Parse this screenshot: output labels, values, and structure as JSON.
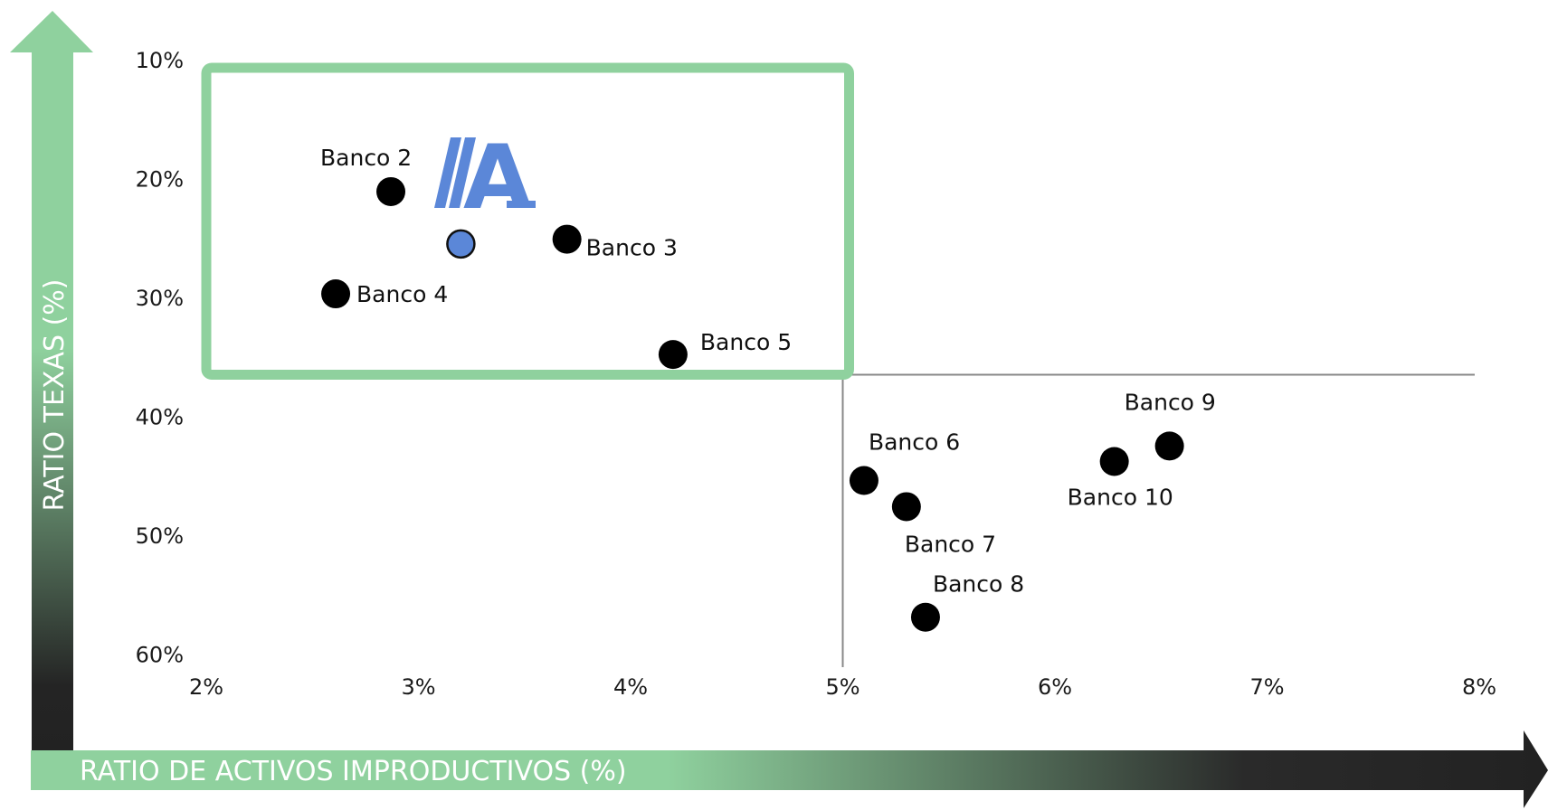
{
  "colors": {
    "accent_green": "#8fd19e",
    "dark": "#222222",
    "point": "#000000",
    "highlight_point": "#5b87d8",
    "logo_blue": "#5b87d8",
    "divider": "#888888"
  },
  "logo": {
    "text": "A",
    "icon": "brand-logo-icon"
  },
  "chart_data": {
    "type": "scatter",
    "title": "",
    "xlabel": "RATIO DE ACTIVOS IMPRODUCTIVOS (%)",
    "ylabel": "RATIO TEXAS (%)",
    "xlim": [
      2,
      8
    ],
    "ylim": [
      10,
      60
    ],
    "y_inverted": true,
    "grid": false,
    "x_ticks": [
      {
        "value": 2,
        "label": "2%"
      },
      {
        "value": 3,
        "label": "3%"
      },
      {
        "value": 4,
        "label": "4%"
      },
      {
        "value": 5,
        "label": "5%"
      },
      {
        "value": 6,
        "label": "6%"
      },
      {
        "value": 7,
        "label": "7%"
      },
      {
        "value": 8,
        "label": "8%"
      }
    ],
    "y_ticks": [
      {
        "value": 10,
        "label": "10%"
      },
      {
        "value": 20,
        "label": "20%"
      },
      {
        "value": 30,
        "label": "30%"
      },
      {
        "value": 40,
        "label": "40%"
      },
      {
        "value": 50,
        "label": "50%"
      },
      {
        "value": 60,
        "label": "60%"
      }
    ],
    "thresholds": {
      "x": 5.0,
      "y": 36.5
    },
    "highlight_box": {
      "x_range": [
        2,
        5
      ],
      "y_range": [
        10,
        36.5
      ],
      "color": "#8fd19e"
    },
    "points": [
      {
        "name": "",
        "x": 3.2,
        "y": 25.5,
        "highlight": true,
        "label_pos": "none"
      },
      {
        "name": "Banco 2",
        "x": 2.87,
        "y": 21.1,
        "label_pos": "above"
      },
      {
        "name": "Banco 3",
        "x": 3.7,
        "y": 25.1,
        "label_pos": "right-below"
      },
      {
        "name": "Banco 4",
        "x": 2.61,
        "y": 29.7,
        "label_pos": "right"
      },
      {
        "name": "Banco 5",
        "x": 4.2,
        "y": 34.8,
        "label_pos": "right-above"
      },
      {
        "name": "Banco 6",
        "x": 5.1,
        "y": 45.4,
        "label_pos": "above-right"
      },
      {
        "name": "Banco 7",
        "x": 5.3,
        "y": 47.6,
        "label_pos": "below-right"
      },
      {
        "name": "Banco 8",
        "x": 5.39,
        "y": 56.9,
        "label_pos": "above-right"
      },
      {
        "name": "Banco 9",
        "x": 6.54,
        "y": 42.5,
        "label_pos": "above"
      },
      {
        "name": "Banco 10",
        "x": 6.28,
        "y": 43.8,
        "label_pos": "below"
      }
    ]
  }
}
